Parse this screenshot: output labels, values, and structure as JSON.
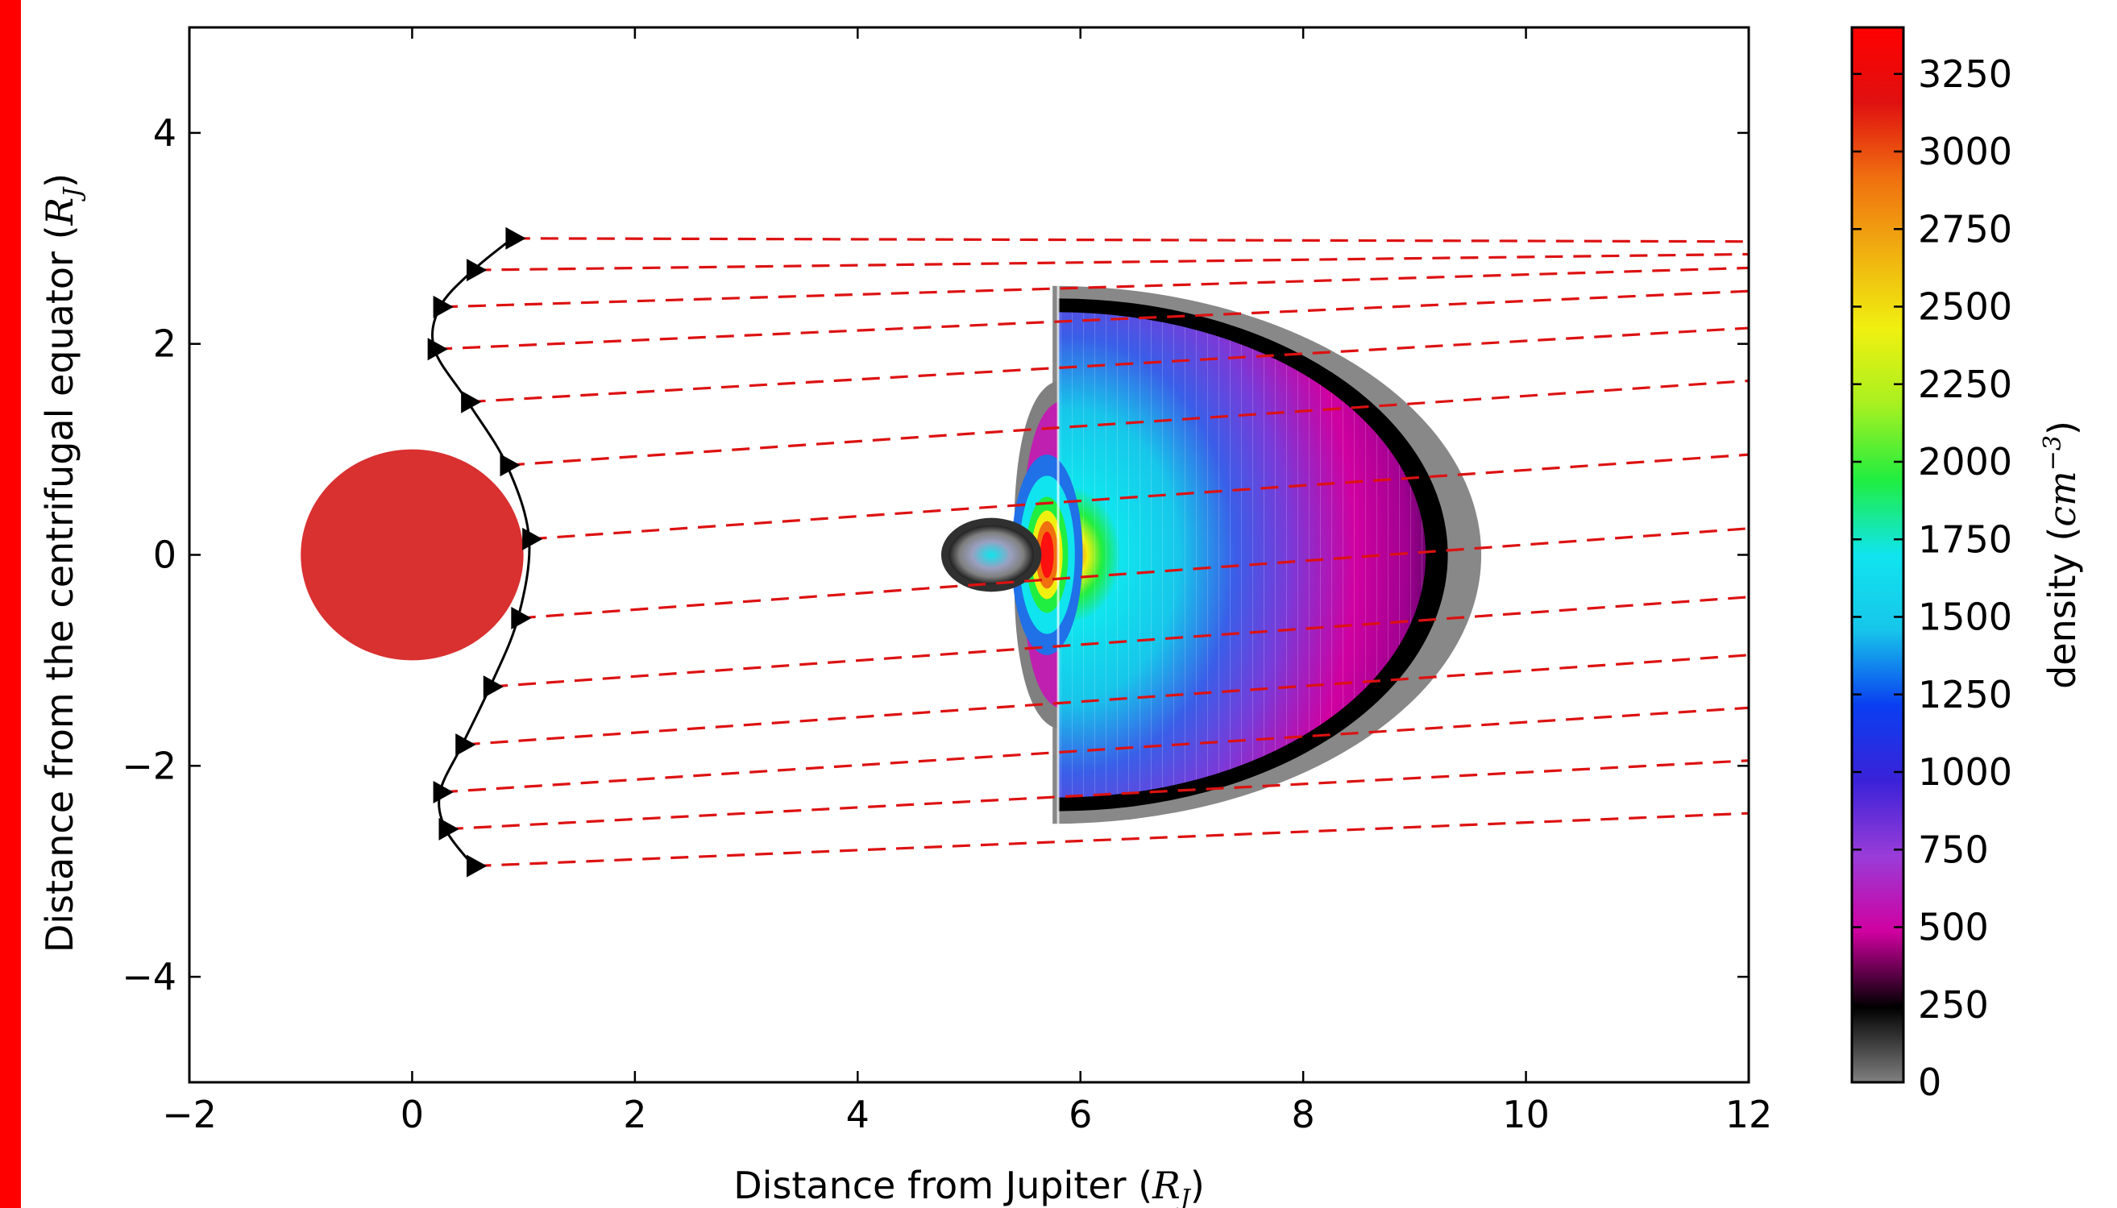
{
  "chart_data": {
    "type": "contour",
    "title": "",
    "xlabel": "Distance from Jupiter",
    "xlabel_unit": "R_J",
    "ylabel": "Distance from the centrifugal equator",
    "ylabel_unit": "R_J",
    "xlim": [
      -2,
      12
    ],
    "ylim": [
      -5,
      5
    ],
    "x_ticks": [
      -2,
      0,
      2,
      4,
      6,
      8,
      10,
      12
    ],
    "x_tick_labels": [
      "−2",
      "0",
      "2",
      "4",
      "6",
      "8",
      "10",
      "12"
    ],
    "y_ticks": [
      -4,
      -2,
      0,
      2,
      4
    ],
    "y_tick_labels": [
      "−4",
      "−2",
      "0",
      "2",
      "4"
    ],
    "jupiter": {
      "center": [
        0,
        0
      ],
      "radius": 1,
      "color": "#d93030"
    },
    "trajectory": {
      "points": [
        [
          0.9,
          3.0
        ],
        [
          0.55,
          2.7
        ],
        [
          0.25,
          2.35
        ],
        [
          0.2,
          1.95
        ],
        [
          0.5,
          1.45
        ],
        [
          0.85,
          0.85
        ],
        [
          1.05,
          0.15
        ],
        [
          0.95,
          -0.6
        ],
        [
          0.7,
          -1.25
        ],
        [
          0.45,
          -1.8
        ],
        [
          0.25,
          -2.25
        ],
        [
          0.3,
          -2.6
        ],
        [
          0.55,
          -2.95
        ]
      ],
      "color": "#000000",
      "marker": "triangle-right"
    },
    "lines_of_sight": {
      "style": "dashed",
      "color": "#dd1111",
      "segments": [
        [
          [
            0.9,
            3.0
          ],
          [
            12,
            2.97
          ]
        ],
        [
          [
            0.55,
            2.7
          ],
          [
            12,
            2.85
          ]
        ],
        [
          [
            0.25,
            2.35
          ],
          [
            12,
            2.72
          ]
        ],
        [
          [
            0.2,
            1.95
          ],
          [
            12,
            2.5
          ]
        ],
        [
          [
            0.5,
            1.45
          ],
          [
            12,
            2.15
          ]
        ],
        [
          [
            0.85,
            0.85
          ],
          [
            12,
            1.65
          ]
        ],
        [
          [
            1.05,
            0.15
          ],
          [
            12,
            0.95
          ]
        ],
        [
          [
            0.95,
            -0.6
          ],
          [
            12,
            0.25
          ]
        ],
        [
          [
            0.7,
            -1.25
          ],
          [
            12,
            -0.4
          ]
        ],
        [
          [
            0.45,
            -1.8
          ],
          [
            12,
            -0.95
          ]
        ],
        [
          [
            0.25,
            -2.25
          ],
          [
            12,
            -1.45
          ]
        ],
        [
          [
            0.3,
            -2.6
          ],
          [
            12,
            -1.95
          ]
        ],
        [
          [
            0.55,
            -2.95
          ],
          [
            12,
            -2.45
          ]
        ]
      ]
    },
    "colorbar": {
      "label": "density",
      "unit": "cm^-3",
      "range": [
        0,
        3400
      ],
      "ticks": [
        0,
        250,
        500,
        750,
        1000,
        1250,
        1500,
        1750,
        2000,
        2250,
        2500,
        2750,
        3000,
        3250
      ],
      "tick_labels": [
        "0",
        "250",
        "500",
        "750",
        "1000",
        "1250",
        "1500",
        "1750",
        "2000",
        "2250",
        "2500",
        "2750",
        "3000",
        "3250"
      ],
      "colors": [
        "#808080",
        "#000000",
        "#d000a0",
        "#9a3cd8",
        "#3a22d8",
        "#0a3ef0",
        "#17c6ea",
        "#10e4ee",
        "#20ee40",
        "#a8f020",
        "#f0f010",
        "#f0b010",
        "#f07010",
        "#e01010",
        "#ff0000"
      ]
    },
    "torus_region": {
      "inner_edge_x": 5.8,
      "outer_edge_x": 9.6,
      "half_height": 2.55,
      "peak": {
        "x": 5.7,
        "y": 0
      }
    },
    "blob_region": {
      "center": [
        5.2,
        0
      ],
      "rx": 0.45,
      "ry": 0.35
    }
  }
}
